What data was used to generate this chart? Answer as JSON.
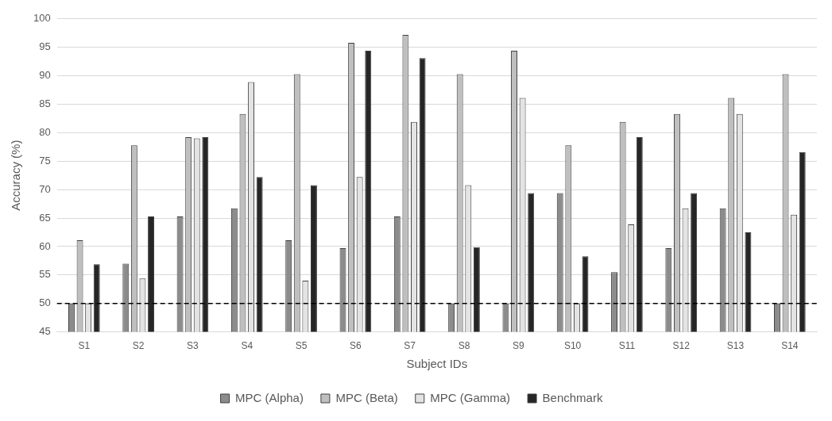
{
  "chart_data": {
    "type": "bar",
    "xlabel": "Subject IDs",
    "ylabel": "Accuracy (%)",
    "categories": [
      "S1",
      "S2",
      "S3",
      "S4",
      "S5",
      "S6",
      "S7",
      "S8",
      "S9",
      "S10",
      "S11",
      "S12",
      "S13",
      "S14"
    ],
    "series": [
      {
        "name": "MPC (Alpha)",
        "color": "#8c8c8c",
        "values": [
          50,
          57,
          65.3,
          66.7,
          61.1,
          59.7,
          65.3,
          50,
          50,
          69.4,
          55.5,
          59.7,
          66.7,
          50
        ]
      },
      {
        "name": "MPC (Beta)",
        "color": "#bfbfbf",
        "values": [
          61.1,
          77.8,
          79.2,
          83.3,
          90.3,
          95.8,
          97.2,
          90.3,
          94.4,
          77.8,
          81.9,
          83.3,
          86.1,
          90.3
        ]
      },
      {
        "name": "MPC (Gamma)",
        "color": "#e3e3e3",
        "values": [
          50,
          54.4,
          79,
          88.9,
          54,
          72.2,
          81.9,
          70.8,
          86.1,
          50,
          63.9,
          66.7,
          83.3,
          65.6
        ]
      },
      {
        "name": "Benchmark",
        "color": "#262626",
        "values": [
          56.9,
          65.3,
          79.2,
          72.2,
          70.8,
          94.4,
          93.1,
          59.9,
          69.4,
          58.3,
          79.2,
          69.4,
          62.5,
          76.6
        ]
      }
    ],
    "ylim": [
      45,
      100
    ],
    "yticks": [
      45,
      50,
      55,
      60,
      65,
      70,
      75,
      80,
      85,
      90,
      95,
      100
    ],
    "ref_lines": [
      {
        "axis": "y",
        "value": 50,
        "color": "#000000",
        "line_style": "dashed"
      }
    ],
    "grid": "y",
    "legend": "bottom"
  }
}
